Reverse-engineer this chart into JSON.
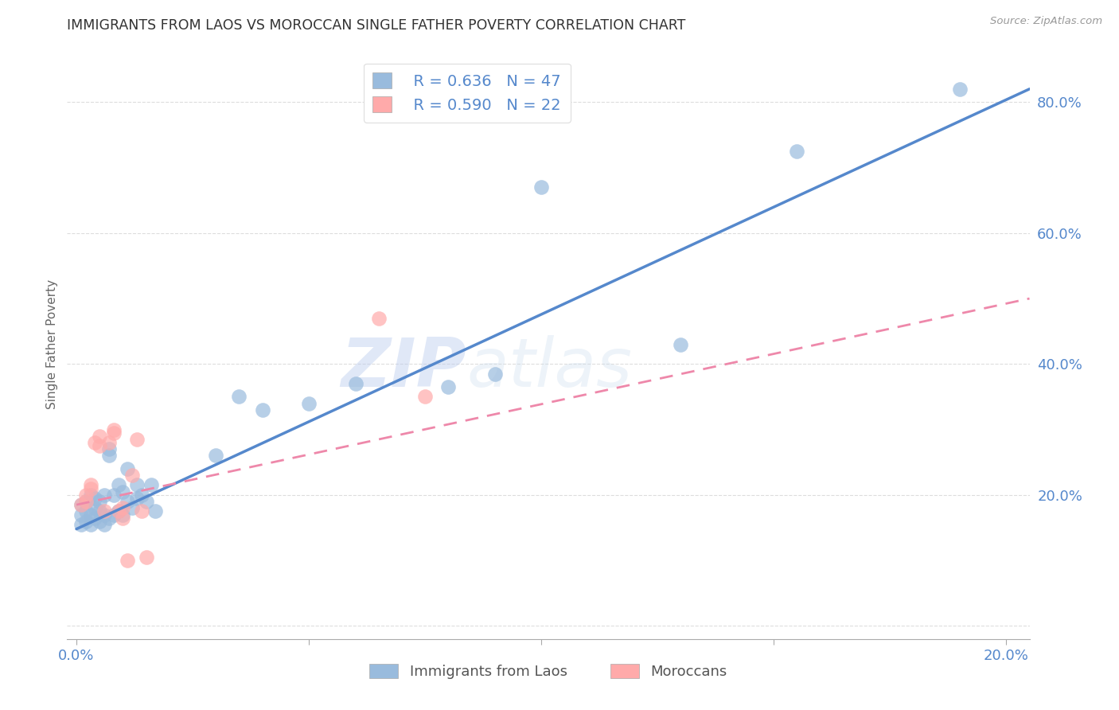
{
  "title": "IMMIGRANTS FROM LAOS VS MOROCCAN SINGLE FATHER POVERTY CORRELATION CHART",
  "source": "Source: ZipAtlas.com",
  "ylabel": "Single Father Poverty",
  "y_ticks": [
    0.0,
    0.2,
    0.4,
    0.6,
    0.8
  ],
  "y_tick_labels": [
    "",
    "20.0%",
    "40.0%",
    "60.0%",
    "80.0%"
  ],
  "x_ticks": [
    0.0,
    0.05,
    0.1,
    0.15,
    0.2
  ],
  "x_tick_labels": [
    "0.0%",
    "",
    "",
    "",
    "20.0%"
  ],
  "xlim": [
    -0.002,
    0.205
  ],
  "ylim": [
    -0.02,
    0.88
  ],
  "legend_r1": "R = 0.636",
  "legend_n1": "N = 47",
  "legend_r2": "R = 0.590",
  "legend_n2": "N = 22",
  "color_blue": "#99BBDD",
  "color_pink": "#FFAAAA",
  "color_trend_blue": "#5588CC",
  "color_trend_pink": "#EE88AA",
  "watermark_zip": "ZIP",
  "watermark_atlas": "atlas",
  "legend_label1": "Immigrants from Laos",
  "legend_label2": "Moroccans",
  "laos_x": [
    0.001,
    0.001,
    0.001,
    0.002,
    0.002,
    0.002,
    0.003,
    0.003,
    0.003,
    0.004,
    0.004,
    0.004,
    0.005,
    0.005,
    0.005,
    0.006,
    0.006,
    0.006,
    0.007,
    0.007,
    0.007,
    0.008,
    0.008,
    0.009,
    0.009,
    0.01,
    0.01,
    0.011,
    0.011,
    0.012,
    0.013,
    0.013,
    0.014,
    0.015,
    0.016,
    0.017,
    0.03,
    0.035,
    0.04,
    0.05,
    0.06,
    0.08,
    0.09,
    0.1,
    0.13,
    0.155,
    0.19
  ],
  "laos_y": [
    0.155,
    0.17,
    0.185,
    0.16,
    0.175,
    0.19,
    0.155,
    0.17,
    0.2,
    0.165,
    0.18,
    0.195,
    0.16,
    0.175,
    0.19,
    0.155,
    0.17,
    0.2,
    0.165,
    0.26,
    0.27,
    0.17,
    0.2,
    0.175,
    0.215,
    0.17,
    0.205,
    0.19,
    0.24,
    0.18,
    0.195,
    0.215,
    0.2,
    0.19,
    0.215,
    0.175,
    0.26,
    0.35,
    0.33,
    0.34,
    0.37,
    0.365,
    0.385,
    0.67,
    0.43,
    0.725,
    0.82
  ],
  "moroccan_x": [
    0.001,
    0.002,
    0.002,
    0.003,
    0.003,
    0.004,
    0.005,
    0.005,
    0.006,
    0.007,
    0.008,
    0.008,
    0.009,
    0.01,
    0.01,
    0.011,
    0.012,
    0.013,
    0.014,
    0.015,
    0.065,
    0.075
  ],
  "moroccan_y": [
    0.185,
    0.19,
    0.2,
    0.21,
    0.215,
    0.28,
    0.275,
    0.29,
    0.175,
    0.28,
    0.295,
    0.3,
    0.175,
    0.165,
    0.18,
    0.1,
    0.23,
    0.285,
    0.175,
    0.105,
    0.47,
    0.35
  ],
  "blue_trend_x0": 0.0,
  "blue_trend_y0": 0.148,
  "blue_trend_x1": 0.205,
  "blue_trend_y1": 0.82,
  "pink_trend_x0": 0.0,
  "pink_trend_y0": 0.185,
  "pink_trend_x1": 0.205,
  "pink_trend_y1": 0.5
}
